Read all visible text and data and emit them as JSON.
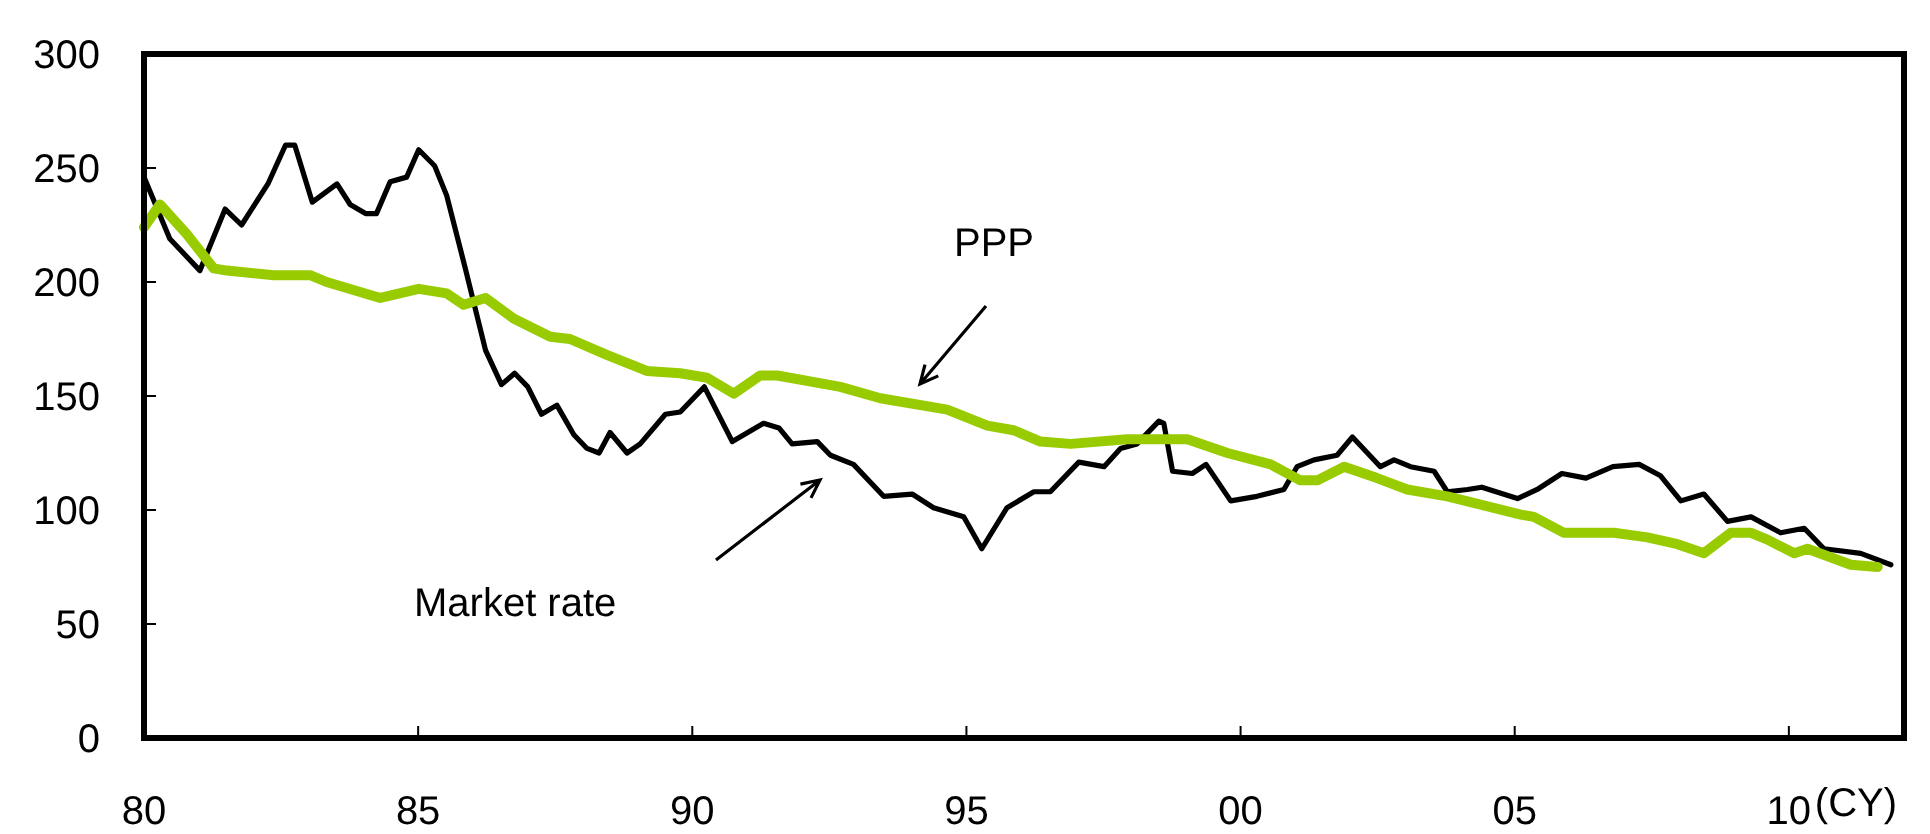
{
  "chart_data": {
    "type": "line",
    "xlabel": "(CY)",
    "xlim": [
      1980,
      2012.1
    ],
    "ylim": [
      0,
      300
    ],
    "xticks": [
      {
        "value": 1980,
        "label": "80"
      },
      {
        "value": 1985,
        "label": "85"
      },
      {
        "value": 1990,
        "label": "90"
      },
      {
        "value": 1995,
        "label": "95"
      },
      {
        "value": 2000,
        "label": "00"
      },
      {
        "value": 2005,
        "label": "05"
      },
      {
        "value": 2010,
        "label": "10"
      }
    ],
    "yticks": [
      0,
      50,
      100,
      150,
      200,
      250,
      300
    ],
    "grid": false,
    "legend": false,
    "marker": "none",
    "line_style": "solid",
    "series": [
      {
        "color": "#000000",
        "x": [
          1980.0,
          1980.47,
          1981.02,
          1981.48,
          1981.78,
          1982.26,
          1982.58,
          1982.75,
          1983.07,
          1983.52,
          1983.76,
          1984.04,
          1984.24,
          1984.49,
          1984.79,
          1985.01,
          1985.3,
          1985.52,
          1985.86,
          1986.23,
          1986.52,
          1986.76,
          1987.0,
          1987.25,
          1987.53,
          1987.84,
          1988.08,
          1988.3,
          1988.5,
          1988.81,
          1989.05,
          1989.51,
          1989.78,
          1990.22,
          1990.73,
          1991.3,
          1991.58,
          1991.82,
          1992.28,
          1992.52,
          1992.94,
          1993.49,
          1994.01,
          1994.4,
          1994.95,
          1995.28,
          1995.74,
          1996.23,
          1996.53,
          1997.05,
          1997.51,
          1997.81,
          1998.11,
          1998.51,
          1998.6,
          1998.76,
          1999.12,
          1999.37,
          1999.82,
          2000.3,
          2000.79,
          2001.03,
          2001.34,
          2001.76,
          2002.04,
          2002.55,
          2002.8,
          2003.1,
          2003.53,
          2003.77,
          2004.14,
          2004.4,
          2005.05,
          2005.41,
          2005.86,
          2006.3,
          2006.79,
          2007.27,
          2007.66,
          2008.03,
          2008.45,
          2008.88,
          2009.31,
          2009.85,
          2010.28,
          2010.64,
          2011.31,
          2011.86
        ],
        "values": [
          246,
          219,
          205,
          232,
          225,
          243,
          260,
          260,
          235,
          243,
          234,
          230,
          230,
          244,
          246,
          258,
          251,
          238,
          206,
          170,
          155,
          160,
          154,
          142,
          146,
          133,
          127,
          125,
          134,
          125,
          129,
          142,
          143,
          154,
          130,
          138,
          136,
          129,
          130,
          124,
          120,
          106,
          107,
          101,
          97,
          83,
          101,
          108,
          108,
          121,
          119,
          127,
          129,
          139,
          138,
          117,
          116,
          120,
          104,
          106,
          109,
          119,
          122,
          124,
          132,
          119,
          122,
          119,
          117,
          108,
          109,
          110,
          105,
          109,
          116,
          114,
          119,
          120,
          115,
          104,
          107,
          95,
          97,
          90,
          92,
          83,
          81,
          76
        ]
      },
      {
        "color": "#99cc00",
        "x": [
          1980.0,
          1980.29,
          1980.78,
          1981.27,
          1981.51,
          1982.36,
          1983.03,
          1983.33,
          1984.31,
          1985.01,
          1985.52,
          1985.83,
          1986.23,
          1986.74,
          1987.41,
          1987.77,
          1988.44,
          1989.17,
          1989.78,
          1990.27,
          1990.76,
          1991.24,
          1991.55,
          1992.7,
          1993.43,
          1994.65,
          1995.38,
          1995.86,
          1996.35,
          1996.9,
          1997.93,
          1999.03,
          1999.76,
          2000.55,
          2001.09,
          2001.4,
          2001.89,
          2002.49,
          2003.04,
          2003.77,
          2005.11,
          2005.35,
          2005.9,
          2006.81,
          2007.42,
          2007.97,
          2008.45,
          2008.94,
          2009.31,
          2009.61,
          2010.1,
          2010.34,
          2011.13,
          2011.62
        ],
        "values": [
          224,
          234,
          221,
          206,
          205,
          203,
          203,
          200,
          193,
          197,
          195,
          190,
          193,
          184,
          176,
          175,
          168,
          161,
          160,
          158,
          151,
          159,
          159,
          154,
          149,
          144,
          137,
          135,
          130,
          129,
          131,
          131,
          125,
          120,
          113,
          113,
          119,
          114,
          109,
          106,
          98,
          97,
          90,
          90,
          88,
          85,
          81,
          90,
          90,
          87,
          81,
          83,
          76,
          75
        ]
      }
    ],
    "annotations": [
      "Market rate",
      "PPP"
    ]
  }
}
